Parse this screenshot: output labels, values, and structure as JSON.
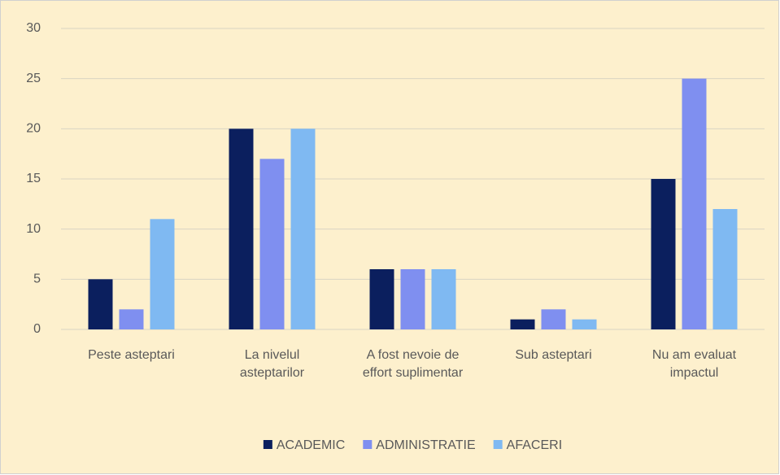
{
  "chart_data": {
    "type": "bar",
    "categories": [
      "Peste asteptari",
      "La nivelul asteptarilor",
      "A fost nevoie de effort suplimentar",
      "Sub asteptari",
      "Nu am evaluat impactul"
    ],
    "series": [
      {
        "name": "ACADEMIC",
        "color": "#0b1f5e",
        "values": [
          5,
          20,
          6,
          1,
          15
        ]
      },
      {
        "name": "ADMINISTRATIE",
        "color": "#7f8ff0",
        "values": [
          2,
          17,
          6,
          2,
          25
        ]
      },
      {
        "name": "AFACERI",
        "color": "#7fb9f2",
        "values": [
          11,
          20,
          6,
          1,
          12
        ]
      }
    ],
    "ylim": [
      0,
      30
    ],
    "yticks": [
      0,
      5,
      10,
      15,
      20,
      25,
      30
    ],
    "grid": true,
    "legend": "bottom"
  }
}
